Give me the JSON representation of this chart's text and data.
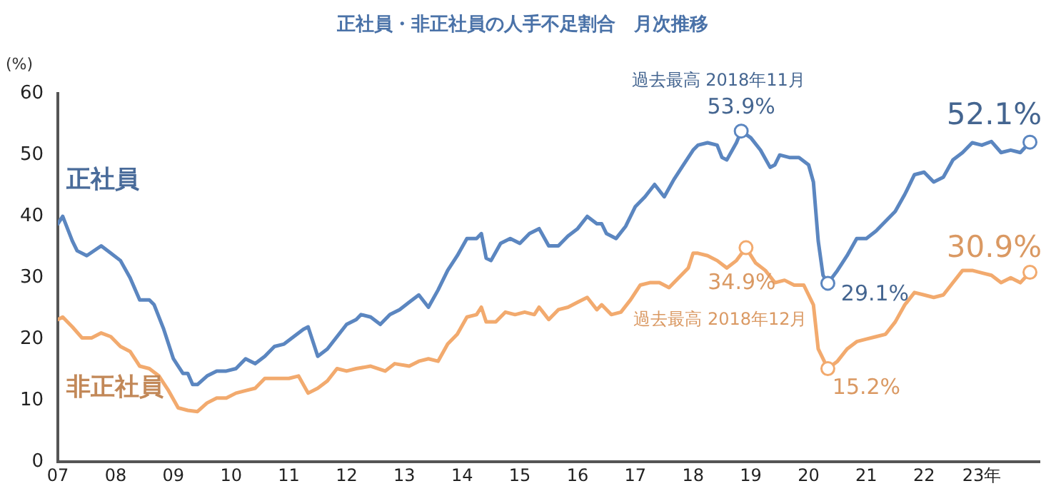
{
  "chart_data": {
    "type": "line",
    "title": "正社員・非正社員の人手不足割合　月次推移",
    "ylabel": "(%)",
    "xlim": [
      "2007-01",
      "2024-01"
    ],
    "xticks": [
      {
        "value": "2007-01",
        "label": "07"
      },
      {
        "value": "2008-01",
        "label": "08"
      },
      {
        "value": "2009-01",
        "label": "09"
      },
      {
        "value": "2010-01",
        "label": "10"
      },
      {
        "value": "2011-01",
        "label": "11"
      },
      {
        "value": "2012-01",
        "label": "12"
      },
      {
        "value": "2013-01",
        "label": "13"
      },
      {
        "value": "2014-01",
        "label": "14"
      },
      {
        "value": "2015-01",
        "label": "15"
      },
      {
        "value": "2016-01",
        "label": "16"
      },
      {
        "value": "2017-01",
        "label": "17"
      },
      {
        "value": "2018-01",
        "label": "18"
      },
      {
        "value": "2019-01",
        "label": "19"
      },
      {
        "value": "2020-01",
        "label": "20"
      },
      {
        "value": "2021-01",
        "label": "21"
      },
      {
        "value": "2022-01",
        "label": "22"
      },
      {
        "value": "2023-01",
        "label": "23年"
      }
    ],
    "ylim": [
      0,
      60
    ],
    "yticks": [
      0,
      10,
      20,
      30,
      40,
      50,
      60
    ],
    "grid": false,
    "legend": false,
    "series": [
      {
        "name": "正社員",
        "color": "#5b86c0",
        "x": [
          "2007-01",
          "2007-02",
          "2007-04",
          "2007-05",
          "2007-07",
          "2007-10",
          "2007-12",
          "2008-02",
          "2008-04",
          "2008-06",
          "2008-08",
          "2008-09",
          "2008-11",
          "2009-01",
          "2009-03",
          "2009-04",
          "2009-05",
          "2009-06",
          "2009-08",
          "2009-10",
          "2009-12",
          "2010-02",
          "2010-04",
          "2010-06",
          "2010-08",
          "2010-10",
          "2010-12",
          "2011-02",
          "2011-04",
          "2011-05",
          "2011-07",
          "2011-09",
          "2011-11",
          "2012-01",
          "2012-03",
          "2012-04",
          "2012-06",
          "2012-08",
          "2012-10",
          "2012-12",
          "2013-02",
          "2013-04",
          "2013-06",
          "2013-08",
          "2013-10",
          "2013-12",
          "2014-02",
          "2014-04",
          "2014-05",
          "2014-06",
          "2014-07",
          "2014-09",
          "2014-11",
          "2015-01",
          "2015-03",
          "2015-05",
          "2015-07",
          "2015-09",
          "2015-11",
          "2016-01",
          "2016-03",
          "2016-05",
          "2016-06",
          "2016-07",
          "2016-09",
          "2016-11",
          "2017-01",
          "2017-03",
          "2017-05",
          "2017-07",
          "2017-09",
          "2017-11",
          "2018-01",
          "2018-02",
          "2018-04",
          "2018-06",
          "2018-07",
          "2018-08",
          "2018-10",
          "2018-11",
          "2019-01",
          "2019-03",
          "2019-05",
          "2019-06",
          "2019-07",
          "2019-09",
          "2019-11",
          "2020-01",
          "2020-02",
          "2020-03",
          "2020-04",
          "2020-05",
          "2020-07",
          "2020-09",
          "2020-11",
          "2021-01",
          "2021-03",
          "2021-05",
          "2021-07",
          "2021-09",
          "2021-11",
          "2022-01",
          "2022-03",
          "2022-05",
          "2022-07",
          "2022-09",
          "2022-11",
          "2023-01",
          "2023-03",
          "2023-05",
          "2023-07",
          "2023-09",
          "2023-11"
        ],
        "values": [
          38.8,
          40,
          36,
          34.4,
          33.6,
          35.2,
          34,
          32.8,
          30,
          26.4,
          26.4,
          25.6,
          21.6,
          16.8,
          14.4,
          14.4,
          12.6,
          12.6,
          14,
          14.8,
          14.8,
          15.2,
          16.8,
          16,
          17.2,
          18.8,
          19.2,
          20.4,
          21.6,
          22,
          17.2,
          18.4,
          20.4,
          22.4,
          23.2,
          24,
          23.6,
          22.4,
          24,
          24.8,
          26,
          27.2,
          25.2,
          28,
          31.2,
          33.6,
          36.4,
          36.4,
          37.2,
          33.2,
          32.8,
          35.6,
          36.4,
          35.6,
          37.2,
          38,
          35.2,
          35.2,
          36.8,
          38,
          40,
          38.8,
          38.8,
          37.2,
          36.4,
          38.4,
          41.6,
          43.2,
          45.2,
          43.2,
          46,
          48.4,
          50.8,
          51.6,
          52,
          51.6,
          49.6,
          49.2,
          52,
          53.9,
          52.8,
          50.8,
          48,
          48.4,
          50,
          49.6,
          49.6,
          48.4,
          45.6,
          36,
          30.4,
          29.1,
          31.2,
          33.6,
          36.4,
          36.4,
          37.6,
          39.2,
          40.8,
          43.6,
          46.8,
          47.2,
          45.6,
          46.4,
          49.2,
          50.4,
          52,
          51.6,
          52.2,
          50.4,
          50.8,
          50.4,
          52.1
        ]
      },
      {
        "name": "非正社員",
        "color": "#f2aa6e",
        "x": [
          "2007-01",
          "2007-02",
          "2007-04",
          "2007-06",
          "2007-08",
          "2007-10",
          "2007-12",
          "2008-02",
          "2008-04",
          "2008-06",
          "2008-08",
          "2008-10",
          "2008-12",
          "2009-02",
          "2009-04",
          "2009-06",
          "2009-08",
          "2009-10",
          "2009-12",
          "2010-02",
          "2010-04",
          "2010-06",
          "2010-08",
          "2010-10",
          "2011-01",
          "2011-03",
          "2011-05",
          "2011-07",
          "2011-09",
          "2011-11",
          "2012-01",
          "2012-03",
          "2012-06",
          "2012-09",
          "2012-11",
          "2013-02",
          "2013-04",
          "2013-06",
          "2013-08",
          "2013-10",
          "2013-12",
          "2014-02",
          "2014-04",
          "2014-05",
          "2014-06",
          "2014-08",
          "2014-10",
          "2014-12",
          "2015-02",
          "2015-04",
          "2015-05",
          "2015-07",
          "2015-09",
          "2015-11",
          "2016-01",
          "2016-03",
          "2016-05",
          "2016-06",
          "2016-08",
          "2016-10",
          "2016-12",
          "2017-02",
          "2017-04",
          "2017-06",
          "2017-08",
          "2017-10",
          "2017-12",
          "2018-01",
          "2018-02",
          "2018-04",
          "2018-06",
          "2018-08",
          "2018-10",
          "2018-12",
          "2019-02",
          "2019-04",
          "2019-06",
          "2019-08",
          "2019-10",
          "2019-12",
          "2020-02",
          "2020-03",
          "2020-05",
          "2020-07",
          "2020-09",
          "2020-11",
          "2021-01",
          "2021-03",
          "2021-05",
          "2021-07",
          "2021-09",
          "2021-11",
          "2022-01",
          "2022-03",
          "2022-05",
          "2022-07",
          "2022-09",
          "2022-11",
          "2023-01",
          "2023-03",
          "2023-05",
          "2023-07",
          "2023-09",
          "2023-11"
        ],
        "values": [
          23.2,
          23.6,
          22,
          20.2,
          20.2,
          21,
          20.4,
          18.8,
          18,
          15.6,
          15.2,
          14,
          11.6,
          8.8,
          8.4,
          8.2,
          9.6,
          10.4,
          10.4,
          11.2,
          11.6,
          12,
          13.6,
          13.6,
          13.6,
          14,
          11.2,
          12,
          13.2,
          15.2,
          14.8,
          15.2,
          15.6,
          14.8,
          16,
          15.6,
          16.4,
          16.8,
          16.4,
          19.2,
          20.8,
          23.6,
          24,
          25.2,
          22.8,
          22.8,
          24.4,
          24,
          24.4,
          24,
          25.2,
          23.2,
          24.8,
          25.2,
          26,
          26.8,
          24.8,
          25.6,
          24,
          24.4,
          26.4,
          28.8,
          29.2,
          29.2,
          28.4,
          30,
          31.6,
          34,
          34,
          33.6,
          32.8,
          31.6,
          32.8,
          34.9,
          32.4,
          31.2,
          29.2,
          29.6,
          28.8,
          28.8,
          25.6,
          18.4,
          15.2,
          16.4,
          18.4,
          19.6,
          20,
          20.4,
          20.8,
          22.8,
          25.6,
          27.6,
          27.2,
          26.8,
          27.2,
          29.2,
          31.2,
          31.2,
          30.8,
          30.4,
          29.2,
          30,
          29.2,
          30.9
        ]
      }
    ],
    "annotations": [
      {
        "text": "過去最高 2018年11月",
        "x": "2018-11",
        "y": 53.9
      },
      {
        "text": "53.9%",
        "x": "2018-11",
        "y": 53.9
      },
      {
        "text": "29.1%",
        "x": "2020-05",
        "y": 29.1
      },
      {
        "text": "52.1%",
        "x": "2023-11",
        "y": 52.1
      },
      {
        "text": "34.9%",
        "x": "2018-12",
        "y": 34.9
      },
      "過去最高 2018年12月",
      {
        "text": "15.2%",
        "x": "2020-05",
        "y": 15.2
      },
      {
        "text": "30.9%",
        "x": "2023-11",
        "y": 30.9
      }
    ]
  }
}
